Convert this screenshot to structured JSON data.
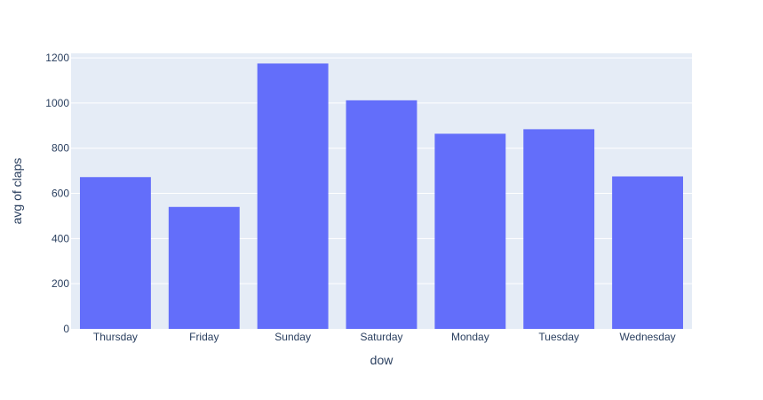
{
  "chart_data": {
    "type": "bar",
    "title": "",
    "xlabel": "dow",
    "ylabel": "avg of claps",
    "categories": [
      "Thursday",
      "Friday",
      "Sunday",
      "Saturday",
      "Monday",
      "Tuesday",
      "Wednesday"
    ],
    "values": [
      672,
      540,
      1175,
      1012,
      864,
      884,
      675
    ],
    "ylim": [
      0,
      1220
    ],
    "yticks": [
      0,
      200,
      400,
      600,
      800,
      1000,
      1200
    ],
    "grid": true,
    "legend": "none",
    "colors": {
      "bar": "#636efa",
      "plot_background": "#e5ecf6",
      "gridline": "#ffffff",
      "text": "#2a3f5f"
    }
  }
}
